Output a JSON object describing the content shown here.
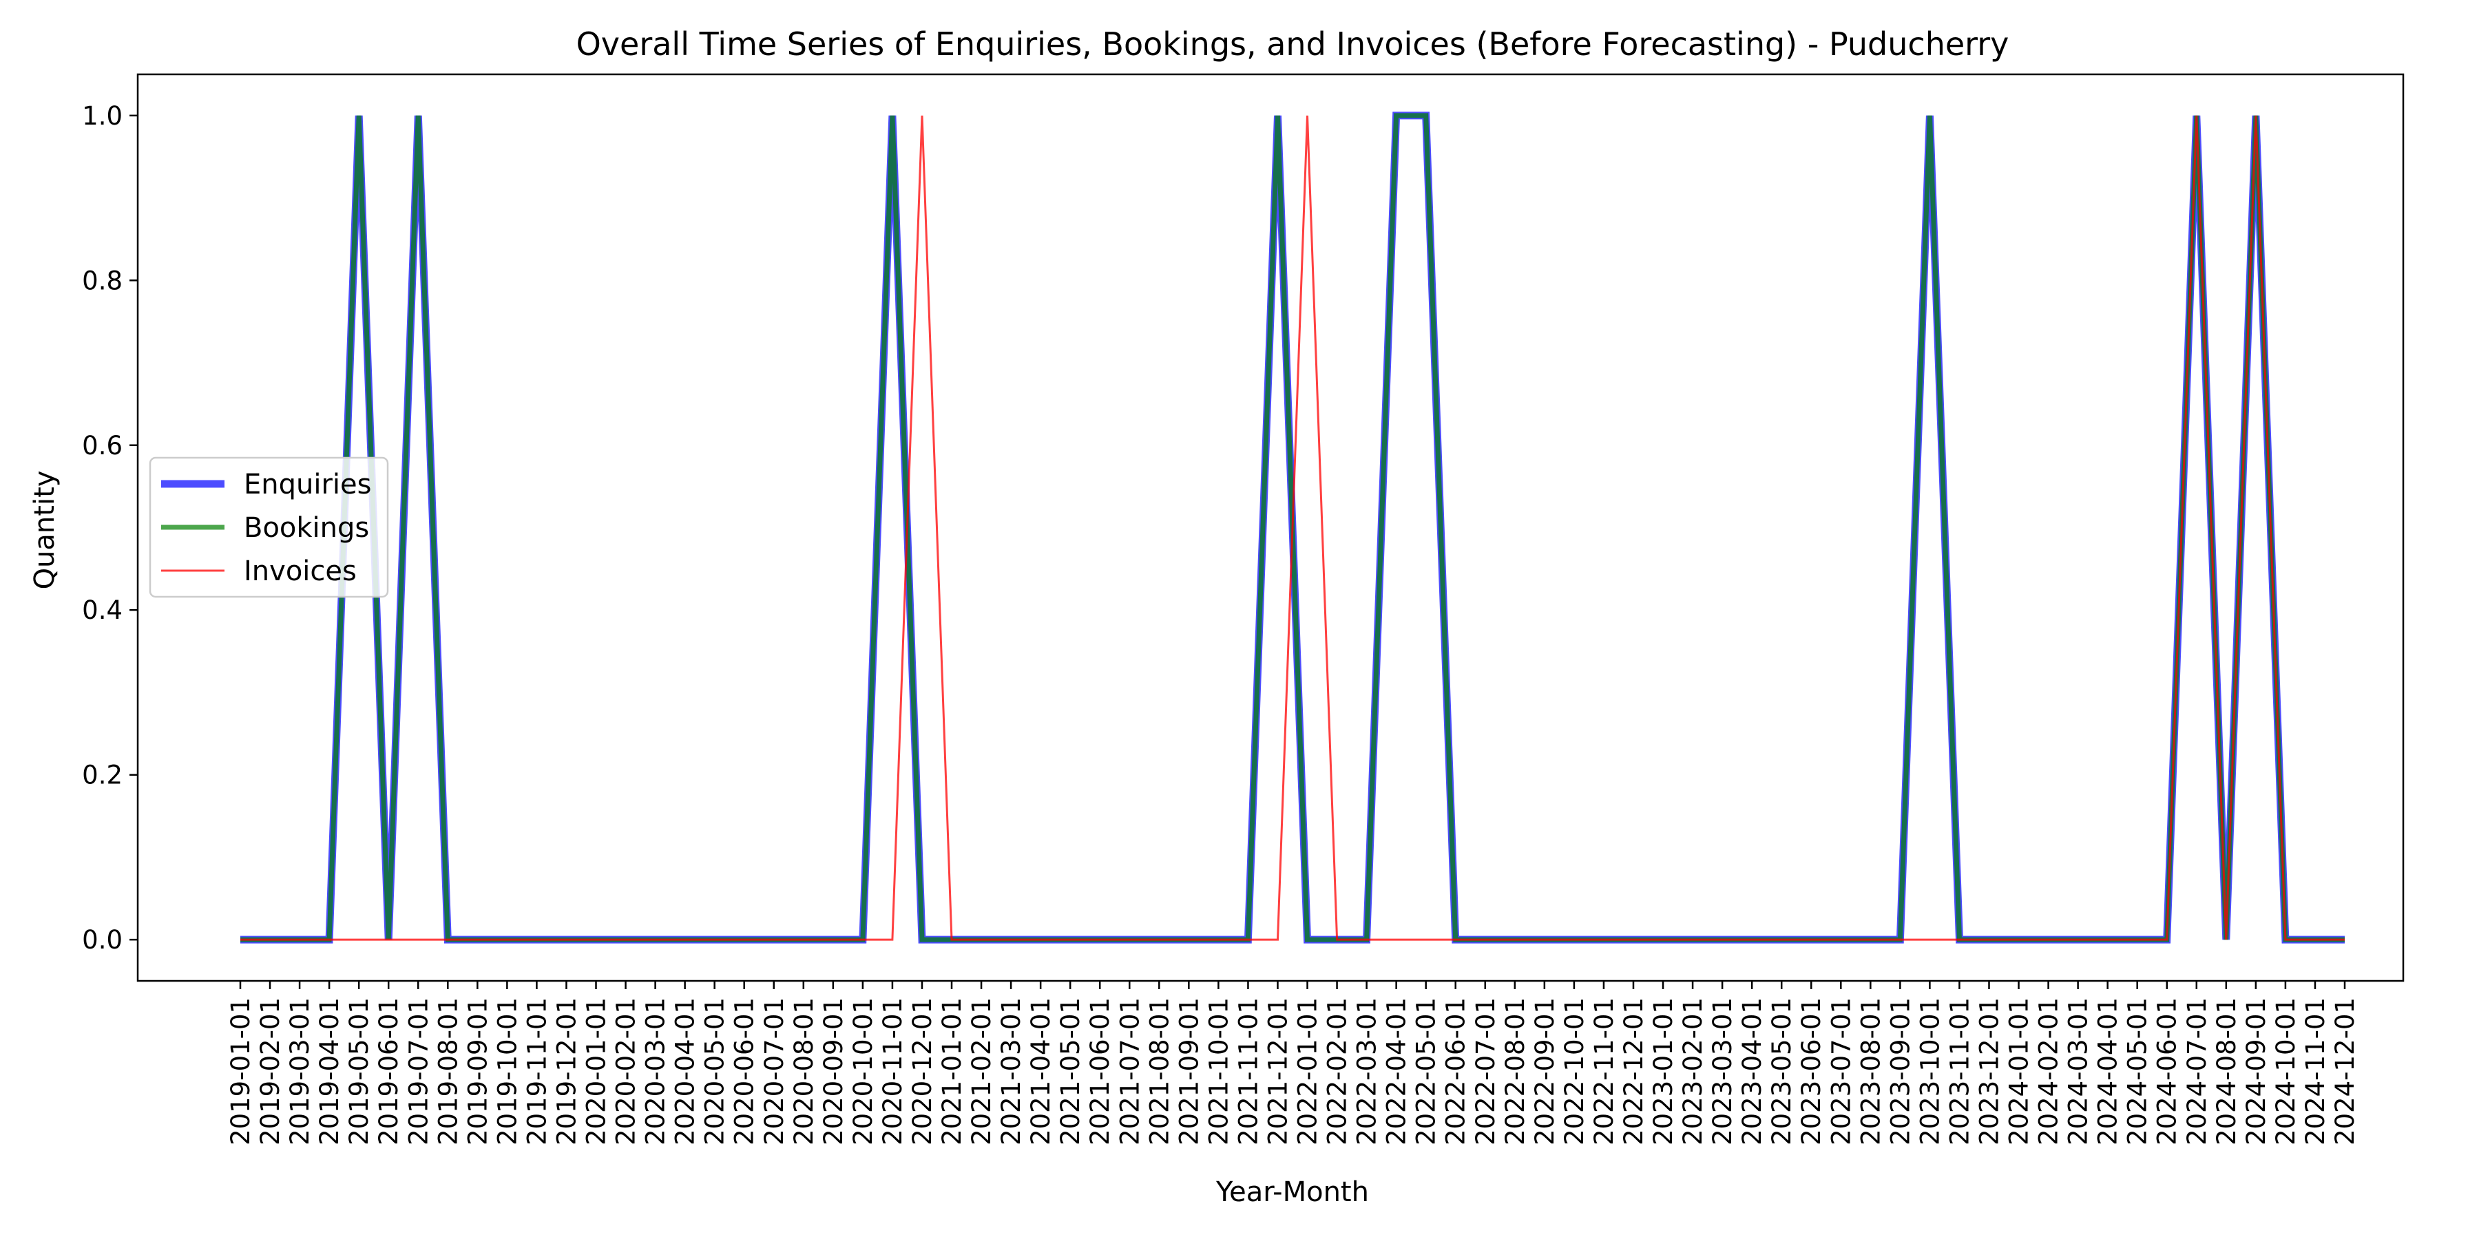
{
  "chart_data": {
    "type": "line",
    "title": "Overall Time Series of Enquiries, Bookings, and Invoices (Before Forecasting) - Puducherry",
    "xlabel": "Year-Month",
    "ylabel": "Quantity",
    "ylim": [
      -0.05,
      1.05
    ],
    "yticks": [
      0.0,
      0.2,
      0.4,
      0.6,
      0.8,
      1.0
    ],
    "ytick_labels": [
      "0.0",
      "0.2",
      "0.4",
      "0.6",
      "0.8",
      "1.0"
    ],
    "grid": false,
    "legend_position": "center-left",
    "x": [
      "2019-01-01",
      "2019-02-01",
      "2019-03-01",
      "2019-04-01",
      "2019-05-01",
      "2019-06-01",
      "2019-07-01",
      "2019-08-01",
      "2019-09-01",
      "2019-10-01",
      "2019-11-01",
      "2019-12-01",
      "2020-01-01",
      "2020-02-01",
      "2020-03-01",
      "2020-04-01",
      "2020-05-01",
      "2020-06-01",
      "2020-07-01",
      "2020-08-01",
      "2020-09-01",
      "2020-10-01",
      "2020-11-01",
      "2020-12-01",
      "2021-01-01",
      "2021-02-01",
      "2021-03-01",
      "2021-04-01",
      "2021-05-01",
      "2021-06-01",
      "2021-07-01",
      "2021-08-01",
      "2021-09-01",
      "2021-10-01",
      "2021-11-01",
      "2021-12-01",
      "2022-01-01",
      "2022-02-01",
      "2022-03-01",
      "2022-04-01",
      "2022-05-01",
      "2022-06-01",
      "2022-07-01",
      "2022-08-01",
      "2022-09-01",
      "2022-10-01",
      "2022-11-01",
      "2022-12-01",
      "2023-01-01",
      "2023-02-01",
      "2023-03-01",
      "2023-04-01",
      "2023-05-01",
      "2023-06-01",
      "2023-07-01",
      "2023-08-01",
      "2023-09-01",
      "2023-10-01",
      "2023-11-01",
      "2023-12-01",
      "2024-01-01",
      "2024-02-01",
      "2024-03-01",
      "2024-04-01",
      "2024-05-01",
      "2024-06-01",
      "2024-07-01",
      "2024-08-01",
      "2024-09-01",
      "2024-10-01",
      "2024-11-01",
      "2024-12-01"
    ],
    "series": [
      {
        "name": "Enquiries",
        "color": "#0000ff",
        "opacity": 0.7,
        "values": [
          0,
          0,
          0,
          0,
          1,
          0,
          1,
          0,
          0,
          0,
          0,
          0,
          0,
          0,
          0,
          0,
          0,
          0,
          0,
          0,
          0,
          0,
          1,
          0,
          0,
          0,
          0,
          0,
          0,
          0,
          0,
          0,
          0,
          0,
          0,
          1,
          0,
          0,
          0,
          1,
          1,
          0,
          0,
          0,
          0,
          0,
          0,
          0,
          0,
          0,
          0,
          0,
          0,
          0,
          0,
          0,
          0,
          1,
          0,
          0,
          0,
          0,
          0,
          0,
          0,
          0,
          1,
          0,
          1,
          0,
          0,
          0
        ]
      },
      {
        "name": "Bookings",
        "color": "#008000",
        "opacity": 0.7,
        "values": [
          0,
          0,
          0,
          0,
          1,
          0,
          1,
          0,
          0,
          0,
          0,
          0,
          0,
          0,
          0,
          0,
          0,
          0,
          0,
          0,
          0,
          0,
          1,
          0,
          0,
          0,
          0,
          0,
          0,
          0,
          0,
          0,
          0,
          0,
          0,
          1,
          0,
          0,
          0,
          1,
          1,
          0,
          0,
          0,
          0,
          0,
          0,
          0,
          0,
          0,
          0,
          0,
          0,
          0,
          0,
          0,
          0,
          1,
          0,
          0,
          0,
          0,
          0,
          0,
          0,
          0,
          1,
          0,
          1,
          0,
          0,
          0
        ]
      },
      {
        "name": "Invoices",
        "color": "#ff0000",
        "opacity": 0.75,
        "values": [
          0,
          0,
          0,
          0,
          0,
          0,
          0,
          0,
          0,
          0,
          0,
          0,
          0,
          0,
          0,
          0,
          0,
          0,
          0,
          0,
          0,
          0,
          0,
          1,
          0,
          0,
          0,
          0,
          0,
          0,
          0,
          0,
          0,
          0,
          0,
          0,
          1,
          0,
          0,
          0,
          0,
          0,
          0,
          0,
          0,
          0,
          0,
          0,
          0,
          0,
          0,
          0,
          0,
          0,
          0,
          0,
          0,
          0,
          0,
          0,
          0,
          0,
          0,
          0,
          0,
          0,
          1,
          0,
          1,
          0,
          0,
          0
        ]
      }
    ]
  }
}
